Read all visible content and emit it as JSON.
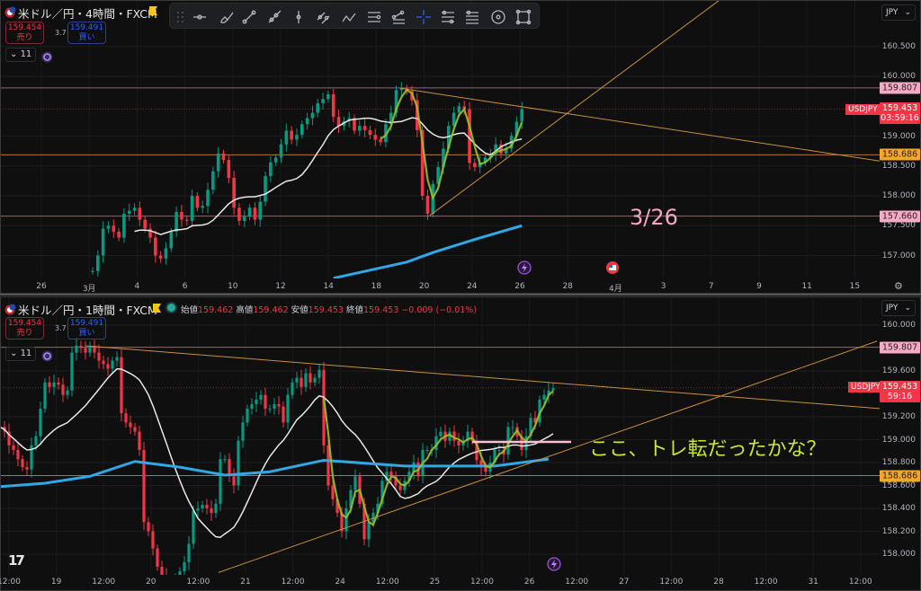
{
  "top": {
    "title": "米ドル／円・4時間・FXCM",
    "sell": {
      "price": "159.454",
      "label": "売り"
    },
    "spread": "3.7",
    "buy": {
      "price": "159.491",
      "label": "買い"
    },
    "indicator_count": "11",
    "currency": "JPY",
    "symbol_tag": "USDJPY",
    "price_tag": "159.453",
    "countdown": "03:59:16",
    "annotation": "3/26"
  },
  "bottom": {
    "title": "米ドル／円・1時間・FXCM",
    "legend": [
      {
        "k": "始値",
        "v": "159.462"
      },
      {
        "k": "高値",
        "v": "159.462"
      },
      {
        "k": "安値",
        "v": "159.453"
      },
      {
        "k": "終値",
        "v": "159.453"
      }
    ],
    "change": "−0.009 (−0.01%)",
    "sell": {
      "price": "159.454",
      "label": "売り"
    },
    "spread": "3.7",
    "buy": {
      "price": "159.491",
      "label": "買い"
    },
    "indicator_count": "11",
    "currency": "JPY",
    "symbol_tag": "USDJPY",
    "price_tag": "159.453",
    "countdown": "59:16",
    "annotation": "ここ、トレ転だったかな？"
  },
  "toolbar": [
    "drag-handle",
    "horizontal-ray",
    "brush",
    "trend-line",
    "ray",
    "vertical-line",
    "parallel-lines",
    "path",
    "horizontal-lines",
    "fib-retracement",
    "crosshair",
    "fib-levels",
    "pitchfork-levels",
    "circle",
    "rectangle"
  ],
  "colors": {
    "up": "#089981",
    "down": "#f23645",
    "ma_short": "#e8e8e8",
    "ma_long": "#2fa8e8",
    "fast": "#9cbf2a",
    "resistance": "#f7a9c5",
    "support": "#f5a623",
    "trend": "#c8903a",
    "annotation_top": "#f4a6c4",
    "annotation_bottom": "#c6e63a",
    "current": "#f23645"
  },
  "chart_data": [
    {
      "type": "candlestick",
      "symbol": "USDJPY",
      "timeframe": "4時間",
      "x_ticks": [
        "26",
        "3月",
        "4",
        "6",
        "10",
        "12",
        "14",
        "18",
        "20",
        "24",
        "26",
        "28",
        "4月",
        "3",
        "7",
        "9",
        "11",
        "15"
      ],
      "y_ticks": [
        "160.500",
        "160.000",
        "159.000",
        "158.500",
        "158.000",
        "157.500",
        "157.000"
      ],
      "ylim": [
        156.62,
        161.28
      ],
      "closes": [
        156.74,
        157.0,
        157.45,
        157.5,
        157.4,
        157.3,
        157.7,
        157.75,
        157.8,
        157.6,
        157.45,
        157.3,
        157.0,
        156.95,
        157.12,
        157.4,
        157.73,
        157.6,
        157.58,
        158.0,
        157.8,
        157.83,
        158.1,
        158.41,
        158.71,
        158.6,
        158.3,
        157.8,
        157.58,
        157.65,
        157.8,
        157.6,
        157.9,
        158.33,
        158.56,
        158.64,
        158.86,
        159.09,
        158.94,
        159.02,
        159.2,
        159.3,
        159.39,
        159.55,
        159.62,
        159.7,
        159.32,
        159.17,
        159.25,
        159.3,
        159.09,
        159.17,
        159.1,
        159.02,
        158.94,
        158.9,
        159.2,
        159.39,
        159.77,
        159.8,
        159.75,
        159.6,
        159.1,
        158.0,
        157.7,
        158.2,
        158.48,
        158.79,
        159.17,
        159.39,
        159.5,
        159.45,
        158.55,
        158.48,
        158.56,
        158.64,
        158.7,
        158.86,
        158.71,
        158.79,
        159.0,
        159.24,
        159.45
      ],
      "ma_long_points": [
        [
          46,
          156.62
        ],
        [
          60,
          156.89
        ],
        [
          65,
          157.05
        ],
        [
          73,
          157.27
        ],
        [
          82,
          157.5
        ]
      ],
      "levels": [
        {
          "price": 159.807,
          "label": "159.807",
          "kind": "resistance"
        },
        {
          "price": 158.686,
          "label": "158.686",
          "kind": "support"
        },
        {
          "price": 157.66,
          "label": "157.660",
          "kind": "resistance"
        }
      ],
      "current_price": 159.453,
      "trendlines": [
        [
          [
            58.8,
            159.8
          ],
          [
            158,
            158.48
          ]
        ],
        [
          [
            64.4,
            157.67
          ],
          [
            119.8,
            161.28
          ]
        ]
      ],
      "fast_from": 55
    },
    {
      "type": "candlestick",
      "symbol": "USDJPY",
      "timeframe": "1時間",
      "x_ticks": [
        "12:00",
        "19",
        "12:00",
        "20",
        "12:00",
        "21",
        "12:00",
        "24",
        "12:00",
        "25",
        "12:00",
        "26",
        "12:00",
        "27",
        "12:00",
        "28",
        "12:00",
        "31",
        "12:00"
      ],
      "y_ticks": [
        "160.000",
        "159.600",
        "159.200",
        "159.000",
        "158.800",
        "158.600",
        "158.400",
        "158.200",
        "158.000"
      ],
      "ylim": [
        157.8,
        160.05
      ],
      "closes": [
        159.11,
        159.07,
        158.95,
        158.91,
        158.83,
        158.76,
        158.74,
        158.95,
        159.03,
        159.27,
        159.5,
        159.46,
        159.5,
        159.48,
        159.39,
        159.43,
        159.76,
        159.82,
        159.8,
        159.76,
        159.82,
        159.76,
        159.69,
        159.66,
        159.62,
        159.69,
        159.72,
        159.23,
        159.15,
        159.11,
        159.07,
        158.91,
        158.28,
        158.2,
        158.05,
        157.89,
        157.81,
        157.77,
        157.77,
        157.77,
        157.85,
        157.93,
        158.09,
        158.38,
        158.4,
        158.43,
        158.4,
        158.36,
        158.44,
        158.83,
        158.83,
        158.68,
        158.6,
        158.99,
        159.15,
        159.27,
        159.31,
        159.35,
        159.39,
        159.27,
        159.27,
        159.31,
        159.29,
        159.15,
        159.39,
        159.5,
        159.54,
        159.46,
        159.58,
        159.5,
        159.54,
        159.61,
        158.95,
        158.6,
        158.48,
        158.36,
        158.2,
        158.4,
        158.56,
        158.68,
        158.44,
        158.13,
        158.28,
        158.36,
        158.44,
        158.64,
        158.72,
        158.68,
        158.6,
        158.56,
        158.64,
        158.72,
        158.8,
        158.68,
        158.91,
        158.91,
        158.91,
        159.03,
        159.07,
        158.99,
        159.07,
        158.99,
        158.95,
        158.99,
        159.07,
        158.99,
        158.82,
        158.76,
        158.72,
        158.8,
        158.91,
        158.91,
        158.87,
        159.11,
        159.11,
        159.03,
        158.91,
        159.03,
        159.19,
        159.15,
        159.35,
        159.39,
        159.43,
        159.45
      ],
      "ma_long_points": [
        [
          0,
          158.59
        ],
        [
          10,
          158.62
        ],
        [
          20,
          158.68
        ],
        [
          30,
          158.81
        ],
        [
          40,
          158.76
        ],
        [
          50,
          158.69
        ],
        [
          60,
          158.72
        ],
        [
          72,
          158.82
        ],
        [
          90,
          158.77
        ],
        [
          110,
          158.77
        ],
        [
          122,
          158.83
        ]
      ],
      "levels": [
        {
          "price": 159.807,
          "label": "159.807",
          "kind": "resistance"
        },
        {
          "price": 158.686,
          "label": "158.686",
          "kind": "support"
        }
      ],
      "current_price": 159.453,
      "trendlines": [
        [
          [
            19,
            159.82
          ],
          [
            196,
            159.27
          ]
        ],
        [
          [
            48.6,
            157.84
          ],
          [
            195,
            159.86
          ]
        ]
      ],
      "marker": {
        "from": 105,
        "to": 127,
        "price": 158.98
      },
      "fast_from": 72
    }
  ]
}
